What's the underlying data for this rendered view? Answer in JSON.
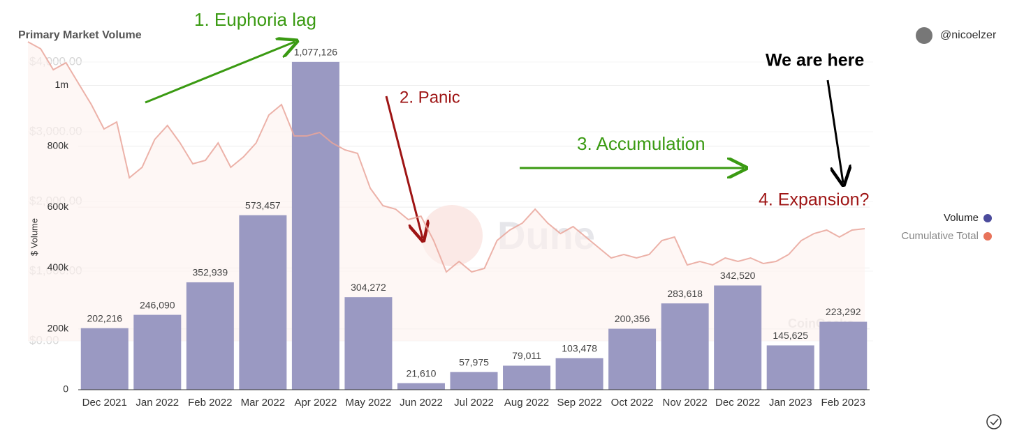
{
  "chart_data": [
    {
      "type": "bar",
      "title": "Primary Market Volume",
      "ylabel": "$ Volume",
      "author": "@nicoelzer",
      "categories": [
        "Dec 2021",
        "Jan 2022",
        "Feb 2022",
        "Mar 2022",
        "Apr 2022",
        "May 2022",
        "Jun 2022",
        "Jul 2022",
        "Aug 2022",
        "Sep 2022",
        "Oct 2022",
        "Nov 2022",
        "Dec 2022",
        "Jan 2023",
        "Feb 2023"
      ],
      "values": [
        202216,
        246090,
        352939,
        573457,
        1077126,
        304272,
        21610,
        57975,
        79011,
        103478,
        200356,
        283618,
        342520,
        145625,
        223292
      ],
      "value_labels": [
        "202,216",
        "246,090",
        "352,939",
        "573,457",
        "1,077,126",
        "304,272",
        "21,610",
        "57,975",
        "79,011",
        "103,478",
        "200,356",
        "283,618",
        "342,520",
        "145,625",
        "223,292"
      ],
      "color": "#9a99c2",
      "ylim": [
        0,
        1100000
      ],
      "yticks": [
        0,
        {
          "value": 200000,
          "label": "200k"
        },
        {
          "value": 400000,
          "label": "400k"
        },
        {
          "value": 600000,
          "label": "600k"
        },
        {
          "value": 800000,
          "label": "800k"
        },
        {
          "value": 1000000,
          "label": "1m"
        }
      ],
      "grid": true,
      "legend": [
        {
          "name": "Volume",
          "color": "#4b4b9c"
        },
        {
          "name": "Cumulative Total",
          "color": "#e8735a"
        }
      ],
      "legend_position": "right",
      "annotations": [
        {
          "text": "1. Euphoria lag",
          "color": "#3a9a12"
        },
        {
          "text": "2. Panic",
          "color": "#9e1414"
        },
        {
          "text": "3. Accumulation",
          "color": "#3a9a12"
        },
        {
          "text": "4. Expansion?",
          "color": "#9e1414"
        },
        {
          "text": "We are here",
          "color": "#000000"
        }
      ],
      "watermarks": [
        "Dune",
        "CoinGecko"
      ]
    },
    {
      "type": "line",
      "color": "#e9a59a",
      "values": [
        4290,
        4190,
        3890,
        3990,
        3690,
        3390,
        3040,
        3140,
        2340,
        2490,
        2890,
        3090,
        2840,
        2540,
        2590,
        2840,
        2490,
        2640,
        2840,
        3240,
        3390,
        2940,
        2940,
        2990,
        2840,
        2740,
        2690,
        2190,
        1940,
        1890,
        1740,
        1790,
        1440,
        990,
        1140,
        990,
        1040,
        1440,
        1590,
        1690,
        1890,
        1690,
        1540,
        1640,
        1490,
        1340,
        1190,
        1240,
        1190,
        1240,
        1440,
        1490,
        1090,
        1140,
        1090,
        1190,
        1140,
        1190,
        1110,
        1140,
        1240,
        1440,
        1540,
        1590,
        1490,
        1590,
        1610
      ],
      "ylim": [
        0,
        4700
      ],
      "yticks": [
        {
          "value": 0,
          "label": "$0.00"
        },
        {
          "value": 1000,
          "label": "$1,000.00"
        },
        {
          "value": 2000,
          "label": "$2,000.00"
        },
        {
          "value": 3000,
          "label": "$3,000.00"
        },
        {
          "value": 4000,
          "label": "$4,000.00"
        }
      ]
    }
  ]
}
